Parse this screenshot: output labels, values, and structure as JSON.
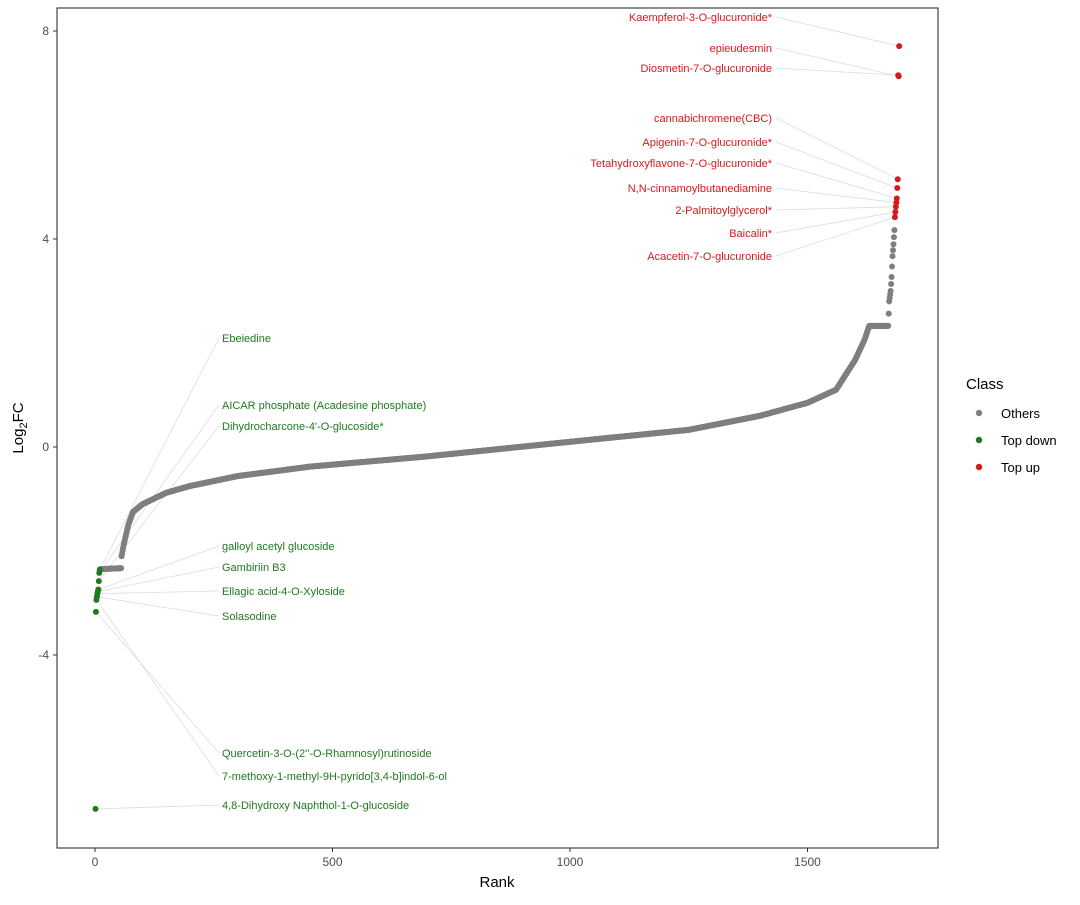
{
  "chart_data": {
    "type": "scatter",
    "title": "",
    "xlabel": "Rank",
    "ylabel_main": "Log",
    "ylabel_sub": "2",
    "ylabel_tail": "FC",
    "xlim": [
      -80,
      1775
    ],
    "ylim": [
      -7.7,
      8.5
    ],
    "xticks": [
      0,
      500,
      1000,
      1500
    ],
    "xtick_labels": [
      "0",
      "500",
      "1000",
      "1500"
    ],
    "yticks": [
      8,
      4,
      0,
      -4
    ],
    "ytick_labels": [
      "8",
      "4",
      "0",
      "-4"
    ],
    "grid": false,
    "legend": {
      "title": "Class",
      "placement": "right",
      "entries": [
        {
          "label": "Others",
          "color": "#7f7f7f"
        },
        {
          "label": "Top down",
          "color": "#1f7a1f"
        },
        {
          "label": "Top up",
          "color": "#d7191c"
        }
      ]
    },
    "others_curve_keypoints": [
      [
        11,
        -2.35
      ],
      [
        55,
        -2.33
      ],
      [
        56,
        -2.1
      ],
      [
        60,
        -1.9
      ],
      [
        70,
        -1.5
      ],
      [
        80,
        -1.25
      ],
      [
        100,
        -1.1
      ],
      [
        150,
        -0.88
      ],
      [
        200,
        -0.75
      ],
      [
        300,
        -0.56
      ],
      [
        450,
        -0.38
      ],
      [
        700,
        -0.18
      ],
      [
        1000,
        0.1
      ],
      [
        1250,
        0.33
      ],
      [
        1400,
        0.6
      ],
      [
        1500,
        0.85
      ],
      [
        1560,
        1.1
      ],
      [
        1600,
        1.67
      ],
      [
        1620,
        2.06
      ],
      [
        1630,
        2.33
      ],
      [
        1670,
        2.33
      ],
      [
        1672,
        2.8
      ],
      [
        1675,
        3.0
      ],
      [
        1677,
        3.27
      ],
      [
        1679,
        3.67
      ],
      [
        1681,
        3.9
      ],
      [
        1683,
        4.17
      ]
    ],
    "top_up": [
      {
        "name": "Kaempferol-3-O-glucuronide*",
        "rank": 1693,
        "log2fc": 7.71
      },
      {
        "name": "epieudesmin",
        "rank": 1692,
        "log2fc": 7.13
      },
      {
        "name": "Diosmetin-7-O-glucuronide",
        "rank": 1691,
        "log2fc": 7.15
      },
      {
        "name": "cannabichromene(CBC)",
        "rank": 1690,
        "log2fc": 5.15
      },
      {
        "name": "Apigenin-7-O-glucuronide*",
        "rank": 1689,
        "log2fc": 4.98
      },
      {
        "name": "Tetahydroxyflavone-7-O-glucuronide*",
        "rank": 1688,
        "log2fc": 4.78
      },
      {
        "name": "N,N-cinnamoylbutanediamine",
        "rank": 1687,
        "log2fc": 4.7
      },
      {
        "name": "2-Palmitoylglycerol*",
        "rank": 1686,
        "log2fc": 4.62
      },
      {
        "name": "Baicalin*",
        "rank": 1685,
        "log2fc": 4.52
      },
      {
        "name": "Acacetin-7-O-glucuronide",
        "rank": 1684,
        "log2fc": 4.42
      }
    ],
    "top_down": [
      {
        "name": "Ebeiedine",
        "rank": 10,
        "log2fc": -2.36
      },
      {
        "name": "AICAR phosphate (Acadesine phosphate)",
        "rank": 9,
        "log2fc": -2.42
      },
      {
        "name": "Dihydrocharcone-4'-O-glucoside*",
        "rank": 8,
        "log2fc": -2.58
      },
      {
        "name": "galloyl acetyl glucoside",
        "rank": 7,
        "log2fc": -2.74
      },
      {
        "name": "Gambiriin B3",
        "rank": 6,
        "log2fc": -2.78
      },
      {
        "name": "Ellagic acid-4-O-Xyloside",
        "rank": 5,
        "log2fc": -2.82
      },
      {
        "name": "Solasodine",
        "rank": 4,
        "log2fc": -2.88
      },
      {
        "name": "Quercetin-3-O-(2''-O-Rhamnosyl)rutinoside",
        "rank": 2,
        "log2fc": -3.17
      },
      {
        "name": "7-methoxy-1-methyl-9H-pyrido[3,4-b]indol-6-ol",
        "rank": 3,
        "log2fc": -2.94
      },
      {
        "name": "4,8-Dihydroxy Naphthol-1-O-glucoside",
        "rank": 1,
        "log2fc": -6.96
      }
    ]
  }
}
